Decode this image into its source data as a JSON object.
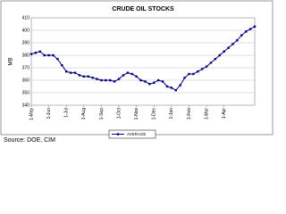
{
  "chart_data": {
    "type": "line",
    "title": "CRUDE OIL STOCKS",
    "y_label": "MB",
    "categories": [
      "1-May",
      null,
      null,
      null,
      "1-Jun",
      null,
      null,
      null,
      "1-Jul",
      null,
      null,
      null,
      "1-Aug",
      null,
      null,
      null,
      "1-Sep",
      null,
      null,
      null,
      "1-Oct",
      null,
      null,
      null,
      "1-Nov",
      null,
      null,
      null,
      "1-Dec",
      null,
      null,
      null,
      "1-Jan",
      null,
      null,
      null,
      "1-Feb",
      null,
      null,
      null,
      "1-Mar",
      null,
      null,
      null,
      "1-Apr",
      null,
      null,
      null,
      null,
      null,
      null,
      null
    ],
    "series": [
      {
        "name": "AVERAGE",
        "color": "#000080",
        "values": [
          381,
          382,
          383,
          380,
          380,
          380,
          377,
          372,
          367,
          366,
          366,
          364,
          363,
          363,
          362,
          361,
          360,
          360,
          360,
          359,
          361,
          364,
          366,
          365,
          363,
          360,
          359,
          357,
          358,
          360,
          359,
          355,
          354,
          352,
          356,
          362,
          365,
          365,
          367,
          369,
          371,
          374,
          377,
          380,
          383,
          386,
          389,
          392,
          396,
          399,
          401,
          403
        ]
      }
    ],
    "ylim": [
      340,
      410
    ],
    "yticks": [
      340,
      350,
      360,
      370,
      380,
      390,
      400,
      410
    ],
    "grid": true,
    "source": "Source: DOE, CIM"
  }
}
